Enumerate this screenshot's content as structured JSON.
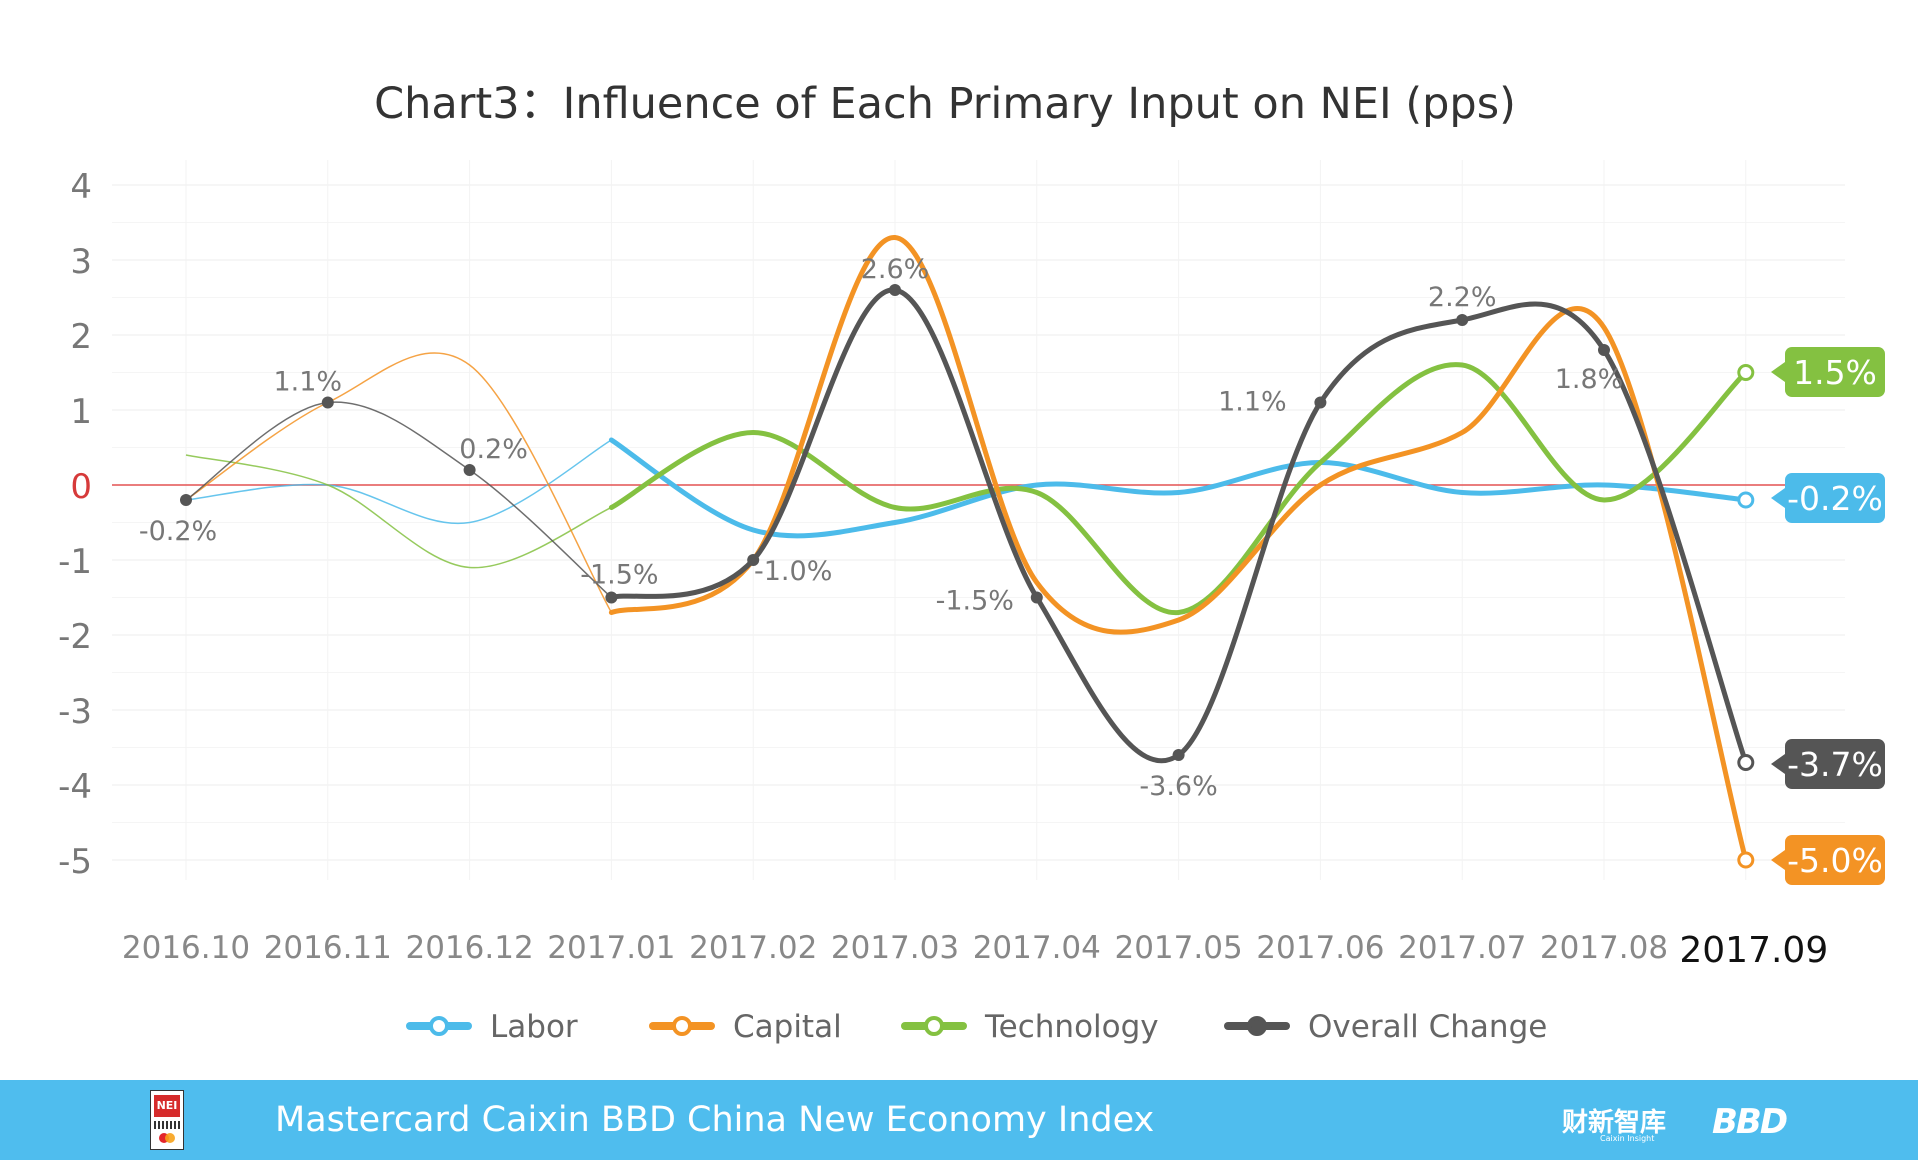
{
  "chart_data": {
    "type": "line",
    "title": "Chart3：Influence of Each Primary Input on NEI (pps)",
    "xlabel": "",
    "ylabel": "",
    "ylim": [
      -5,
      4
    ],
    "yticks": [
      "4",
      "3",
      "2",
      "1",
      "0",
      "-1",
      "-2",
      "-3",
      "-4",
      "-5"
    ],
    "categories": [
      "2016.10",
      "2016.11",
      "2016.12",
      "2017.01",
      "2017.02",
      "2017.03",
      "2017.04",
      "2017.05",
      "2017.06",
      "2017.07",
      "2017.08",
      "2017.09"
    ],
    "series": [
      {
        "name": "Labor",
        "color": "#4cbbea",
        "values": [
          -0.2,
          0.0,
          -0.5,
          0.6,
          -0.6,
          -0.5,
          0.0,
          -0.1,
          0.3,
          -0.1,
          0.0,
          -0.2
        ]
      },
      {
        "name": "Capital",
        "color": "#f39324",
        "values": [
          -0.2,
          1.1,
          1.6,
          -1.7,
          -1.0,
          3.3,
          -1.3,
          -1.8,
          0.0,
          0.7,
          2.1,
          -5.0
        ]
      },
      {
        "name": "Technology",
        "color": "#84c141",
        "values": [
          0.4,
          0.0,
          -1.1,
          -0.3,
          0.7,
          -0.3,
          -0.1,
          -1.7,
          0.3,
          1.6,
          -0.2,
          1.5
        ]
      },
      {
        "name": "Overall Change",
        "color": "#555555",
        "values": [
          -0.2,
          1.1,
          0.2,
          -1.5,
          -1.0,
          2.6,
          -1.5,
          -3.6,
          1.1,
          2.2,
          1.8,
          -3.7
        ]
      }
    ],
    "data_labels": [
      "-0.2%",
      "1.1%",
      "0.2%",
      "-1.5%",
      "-1.0%",
      "2.6%",
      "-1.5%",
      "-3.6%",
      "1.1%",
      "2.2%",
      "1.8%"
    ],
    "end_labels": [
      {
        "series": "Technology",
        "text": "1.5%"
      },
      {
        "series": "Labor",
        "text": "-0.2%"
      },
      {
        "series": "Overall Change",
        "text": "-3.7%"
      },
      {
        "series": "Capital",
        "text": "-5.0%"
      }
    ],
    "legend": {
      "position": "bottom"
    }
  },
  "footer": {
    "index_name": "Mastercard Caixin BBD China New Economy Index",
    "logo_text": "NEI",
    "brand_cn": "财新智库",
    "brand_cn_sub": "Caixin Insight",
    "brand_bbd": "BBD"
  },
  "colors": {
    "zero_line": "#e45252",
    "footer_bg": "#4fbdee"
  }
}
